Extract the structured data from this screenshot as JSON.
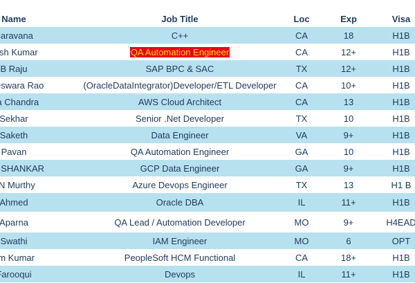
{
  "table": {
    "header": [
      "Name",
      "Job Title",
      "Loc",
      "Exp",
      "Visa"
    ],
    "rows": [
      [
        "Saravana",
        "C++",
        "CA",
        "18",
        "H1B"
      ],
      [
        "thish Kumar",
        "QA Automation Engineer",
        "CA",
        "12+",
        "H1B"
      ],
      [
        "B Raju",
        "SAP BPC & SAC",
        "TX",
        "12+",
        "H1B"
      ],
      [
        "kateswara Rao",
        "(OracleDataIntegrator)Developer/ETL Developer",
        "CA",
        "10+",
        "H1B"
      ],
      [
        "rna Chandra",
        "AWS Cloud Architect",
        "CA",
        "13",
        "H1B"
      ],
      [
        "Sekhar",
        "Senior .Net Developer",
        "TX",
        "10",
        "H1B"
      ],
      [
        "Saketh",
        "Data Engineer",
        "VA",
        "9+",
        "H1B"
      ],
      [
        "Pavan",
        "QA Automation Engineer",
        "GA",
        "10",
        "H1B"
      ],
      [
        "ANI SHANKAR",
        "GCP Data Engineer",
        "GA",
        "9+",
        "H1B"
      ],
      [
        "SN Murthy",
        "Azure Devops Engineer",
        "TX",
        "13",
        "H1 B"
      ],
      [
        "Ahmed",
        "Oracle DBA",
        "IL",
        "11+",
        "H1B"
      ],
      [
        "Aparna",
        "QA Lead / Automation Developer",
        "MO",
        "9+",
        "H4EAD"
      ],
      [
        "Swathi",
        "IAM Engineer",
        "MO",
        "6",
        "OPT"
      ],
      [
        "am Kumar",
        "PeopleSoft HCM Functional",
        "CA",
        "18+",
        "H1B"
      ],
      [
        "Farooqui",
        "Devops",
        "IL",
        "11+",
        "H1B"
      ]
    ]
  }
}
